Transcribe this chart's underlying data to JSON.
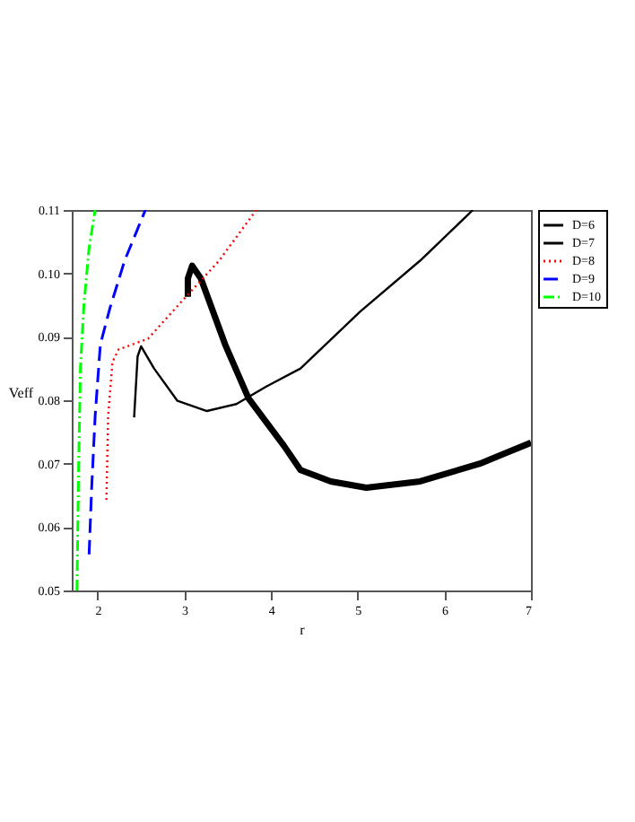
{
  "chart_data": {
    "type": "line",
    "xlabel": "r",
    "ylabel": "Veff",
    "xlim": [
      1.7,
      7
    ],
    "xticks": [
      2,
      3,
      4,
      5,
      6,
      7
    ],
    "ylim": [
      0.05,
      0.11
    ],
    "yticks": [
      0.05,
      0.06,
      0.07,
      0.08,
      0.09,
      {
        "value": 0.1,
        "label": "0.10"
      },
      0.11
    ],
    "grid": false,
    "legend": "right",
    "marker": "none",
    "series": [
      {
        "name": "D=6",
        "color": "#000000",
        "line_style": "solid",
        "x": [
          3.04,
          3.04,
          3.09,
          3.19,
          3.47,
          3.74,
          4.15,
          4.34,
          4.69,
          5.1,
          5.72,
          6.41,
          7.0
        ],
        "values": [
          0.0963,
          0.0992,
          0.1012,
          0.0992,
          0.0888,
          0.0803,
          0.0728,
          0.069,
          0.0672,
          0.0662,
          0.0672,
          0.07,
          0.0733
        ]
      },
      {
        "name": "D=7",
        "color": "#000000",
        "line_style": "solid",
        "x": [
          2.42,
          2.46,
          2.5,
          2.65,
          2.92,
          3.26,
          3.6,
          3.95,
          4.34,
          5.03,
          5.72,
          6.33
        ],
        "values": [
          0.0773,
          0.0869,
          0.0885,
          0.085,
          0.0799,
          0.0783,
          0.0794,
          0.0822,
          0.085,
          0.094,
          0.102,
          0.11
        ]
      },
      {
        "name": "D=8",
        "color": "#ff0000",
        "line_style": "dotted",
        "x": [
          2.1,
          2.12,
          2.17,
          2.24,
          2.58,
          2.99,
          3.4,
          3.83
        ],
        "values": [
          0.0643,
          0.0775,
          0.086,
          0.088,
          0.0897,
          0.0959,
          0.102,
          0.11
        ]
      },
      {
        "name": "D=9",
        "color": "#0000ff",
        "line_style": "dashed",
        "x": [
          1.9,
          1.93,
          1.97,
          2.03,
          2.14,
          2.31,
          2.55
        ],
        "values": [
          0.0557,
          0.0662,
          0.0775,
          0.0888,
          0.0945,
          0.102,
          0.11
        ]
      },
      {
        "name": "D=10",
        "color": "#00ff00",
        "line_style": "dashdot",
        "x": [
          1.76,
          1.78,
          1.8,
          1.84,
          1.9,
          1.97
        ],
        "values": [
          0.05,
          0.07,
          0.085,
          0.095,
          0.104,
          0.11
        ]
      }
    ]
  }
}
